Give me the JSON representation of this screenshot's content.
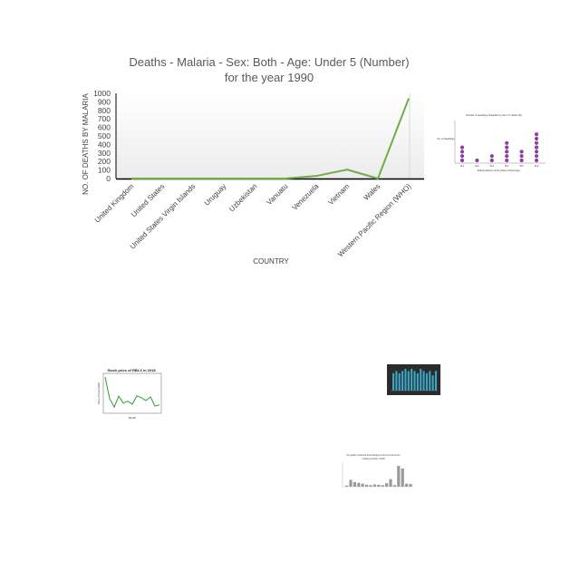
{
  "chart_data": [
    {
      "type": "line",
      "title": "Deaths - Malaria - Sex: Both - Age: Under 5 (Number)",
      "subtitle": "for the year 1990",
      "xlabel": "COUNTRY",
      "ylabel": "NO. OF DEATHS BY MALARIA",
      "categories": [
        "United Kingdom",
        "United States",
        "United States Virgin Islands",
        "Uruguay",
        "Uzbekistan",
        "Vanuatu",
        "Venezuela",
        "Vietnam",
        "Wales",
        "Western Pacific Region (WHO)"
      ],
      "series": [
        {
          "values": [
            0,
            0,
            0,
            0,
            0,
            0,
            30,
            105,
            0,
            940
          ]
        }
      ],
      "ylim": [
        0,
        1000
      ],
      "yticks": [
        0,
        100,
        200,
        300,
        400,
        500,
        600,
        700,
        800,
        900,
        1000
      ],
      "line_color": "#70ad47",
      "grid": false
    },
    {
      "type": "scatter",
      "title": "Number of seedlings Classified by the U.S. Week (W)",
      "ylabel": "No. of Seedlings",
      "xlabel": "Total Emissions of the Class of Seed (kg)",
      "categories": [
        "W-1",
        "W-2",
        "W-3",
        "W-4",
        "W-5",
        "W-6"
      ],
      "values": [
        4,
        1,
        2,
        5,
        3,
        7
      ],
      "dot_color": "#8e3fa0"
    },
    {
      "type": "line",
      "title": "Stock price of RBLX in 2018",
      "xlabel": "Month",
      "ylabel": "Price of Stock (USD)",
      "values": [
        9.5,
        3.5,
        1.2,
        4.2,
        2.3,
        2.8,
        2.0,
        4.3,
        3.8,
        3.0,
        4.0,
        1.5,
        1.8
      ],
      "line_color": "#2e9e34"
    },
    {
      "type": "bar",
      "values": [
        8,
        9,
        8,
        9,
        10,
        9,
        10,
        9,
        8,
        10,
        9,
        8,
        9,
        7,
        9
      ],
      "bar_color": "#3aa6c7",
      "background": "#2b2b2b"
    },
    {
      "type": "bar",
      "title": "Air quality measured at the Beijing environmental center",
      "subtitle": "reading interval in 2018",
      "values": [
        3,
        18,
        12,
        10,
        8,
        5,
        4,
        6,
        5,
        4,
        9,
        20,
        4,
        55,
        48,
        8,
        7
      ],
      "bar_color": "#9a9a9a"
    }
  ]
}
